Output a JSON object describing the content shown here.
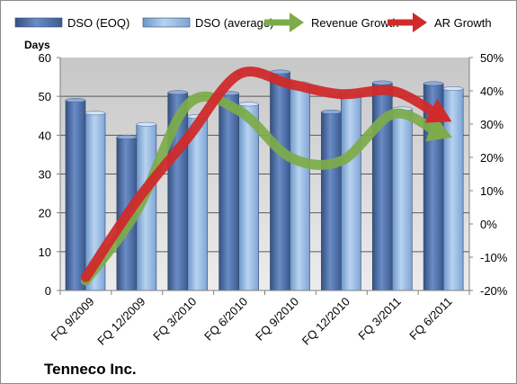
{
  "chart_data": {
    "type": "bar",
    "title": "Tenneco Inc.",
    "ylabel": "Days",
    "categories": [
      "FQ 9/2009",
      "FQ 12/2009",
      "FQ 3/2010",
      "FQ 6/2010",
      "FQ 9/2010",
      "FQ 12/2010",
      "FQ 3/2011",
      "FQ 6/2011"
    ],
    "ylim": [
      0,
      60
    ],
    "y_ticks": [
      "0",
      "10",
      "20",
      "30",
      "40",
      "50",
      "60"
    ],
    "y2lim": [
      -0.2,
      0.5
    ],
    "y2_ticks": [
      "-20%",
      "-10%",
      "0%",
      "10%",
      "20%",
      "30%",
      "40%",
      "50%"
    ],
    "grid": true,
    "legend_position": "top",
    "series": [
      {
        "name": "DSO (EOQ)",
        "type": "bar",
        "axis": "left",
        "color": "#4f6fa8",
        "values": [
          49,
          39.5,
          51,
          50.8,
          56.3,
          46,
          53.5,
          53.3
        ]
      },
      {
        "name": "DSO (average)",
        "type": "bar",
        "axis": "left",
        "color": "#8fb5e0",
        "values": [
          45.7,
          42.8,
          44.8,
          48,
          53.3,
          50.9,
          46.8,
          52
        ]
      },
      {
        "name": "Revenue Growth",
        "type": "arrow",
        "axis": "right",
        "color": "#7dab4a",
        "values": [
          -0.17,
          0.04,
          0.36,
          0.34,
          0.2,
          0.19,
          0.33,
          0.27
        ]
      },
      {
        "name": "AR Growth",
        "type": "arrow",
        "axis": "right",
        "color": "#d02a2a",
        "values": [
          -0.16,
          0.07,
          0.26,
          0.45,
          0.42,
          0.39,
          0.4,
          0.32
        ]
      }
    ]
  }
}
